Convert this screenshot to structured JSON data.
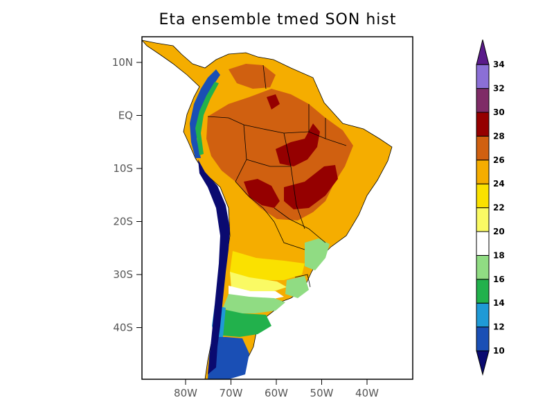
{
  "title": "Eta ensemble tmed SON hist",
  "axes": {
    "lat_ticks": [
      "10N",
      "EQ",
      "10S",
      "20S",
      "30S",
      "40S"
    ],
    "lon_ticks": [
      "80W",
      "70W",
      "60W",
      "50W",
      "40W"
    ]
  },
  "colorbar": {
    "levels": [
      "10",
      "12",
      "14",
      "16",
      "18",
      "20",
      "22",
      "24",
      "26",
      "28",
      "30",
      "32",
      "34"
    ],
    "colors": [
      "#1a4fb5",
      "#1f9ad6",
      "#22b14c",
      "#90dc83",
      "#ffffff",
      "#fafa64",
      "#fae100",
      "#f5ad00",
      "#d06010",
      "#950000",
      "#7f2c67",
      "#8b6fd6"
    ],
    "low_color": "#0a0a70",
    "high_color": "#5a1a8a"
  }
}
